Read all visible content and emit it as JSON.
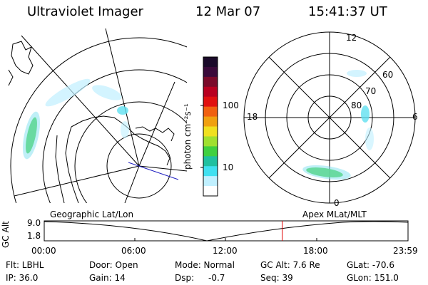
{
  "header": {
    "title": "Ultraviolet Imager",
    "date": "12 Mar 07",
    "time": "15:41:37 UT"
  },
  "colorbar": {
    "unit_label": "photon cm⁻²s⁻¹",
    "ticks": [
      "100",
      "10"
    ],
    "colors": [
      "#1a0a2a",
      "#3a0a3a",
      "#7a0a2a",
      "#b80020",
      "#e01010",
      "#f06010",
      "#f0a010",
      "#f0e020",
      "#a0e030",
      "#40d040",
      "#20c0a0",
      "#40e0f0",
      "#c0f0ff",
      "#ffffff"
    ]
  },
  "left_map": {
    "label": "Geographic Lat/Lon"
  },
  "right_dial": {
    "label": "Apex MLat/MLT",
    "mlt_labels": [
      "12",
      "6",
      "0",
      "18"
    ],
    "mlat_labels": [
      "60",
      "70",
      "80"
    ]
  },
  "timeline": {
    "axis_label": "GC Alt",
    "y_ticks": [
      "9.0",
      "1.8"
    ],
    "x_ticks": [
      "00:00",
      "06:00",
      "12:00",
      "18:00",
      "23:59"
    ],
    "marker_time": "15:41:37",
    "marker_color": "#e00000"
  },
  "info": {
    "flt": "Flt: LBHL",
    "ip": "IP: 36.0",
    "door": "Door: Open",
    "gain": "Gain: 14",
    "mode": "Mode: Normal",
    "dsp": "Dsp:",
    "dsp_val": "-0.7",
    "gcalt": "GC Alt: 7.6 Re",
    "seq": "Seq: 39",
    "glat": "GLat: -70.6",
    "glon": "GLon: 151.0"
  }
}
